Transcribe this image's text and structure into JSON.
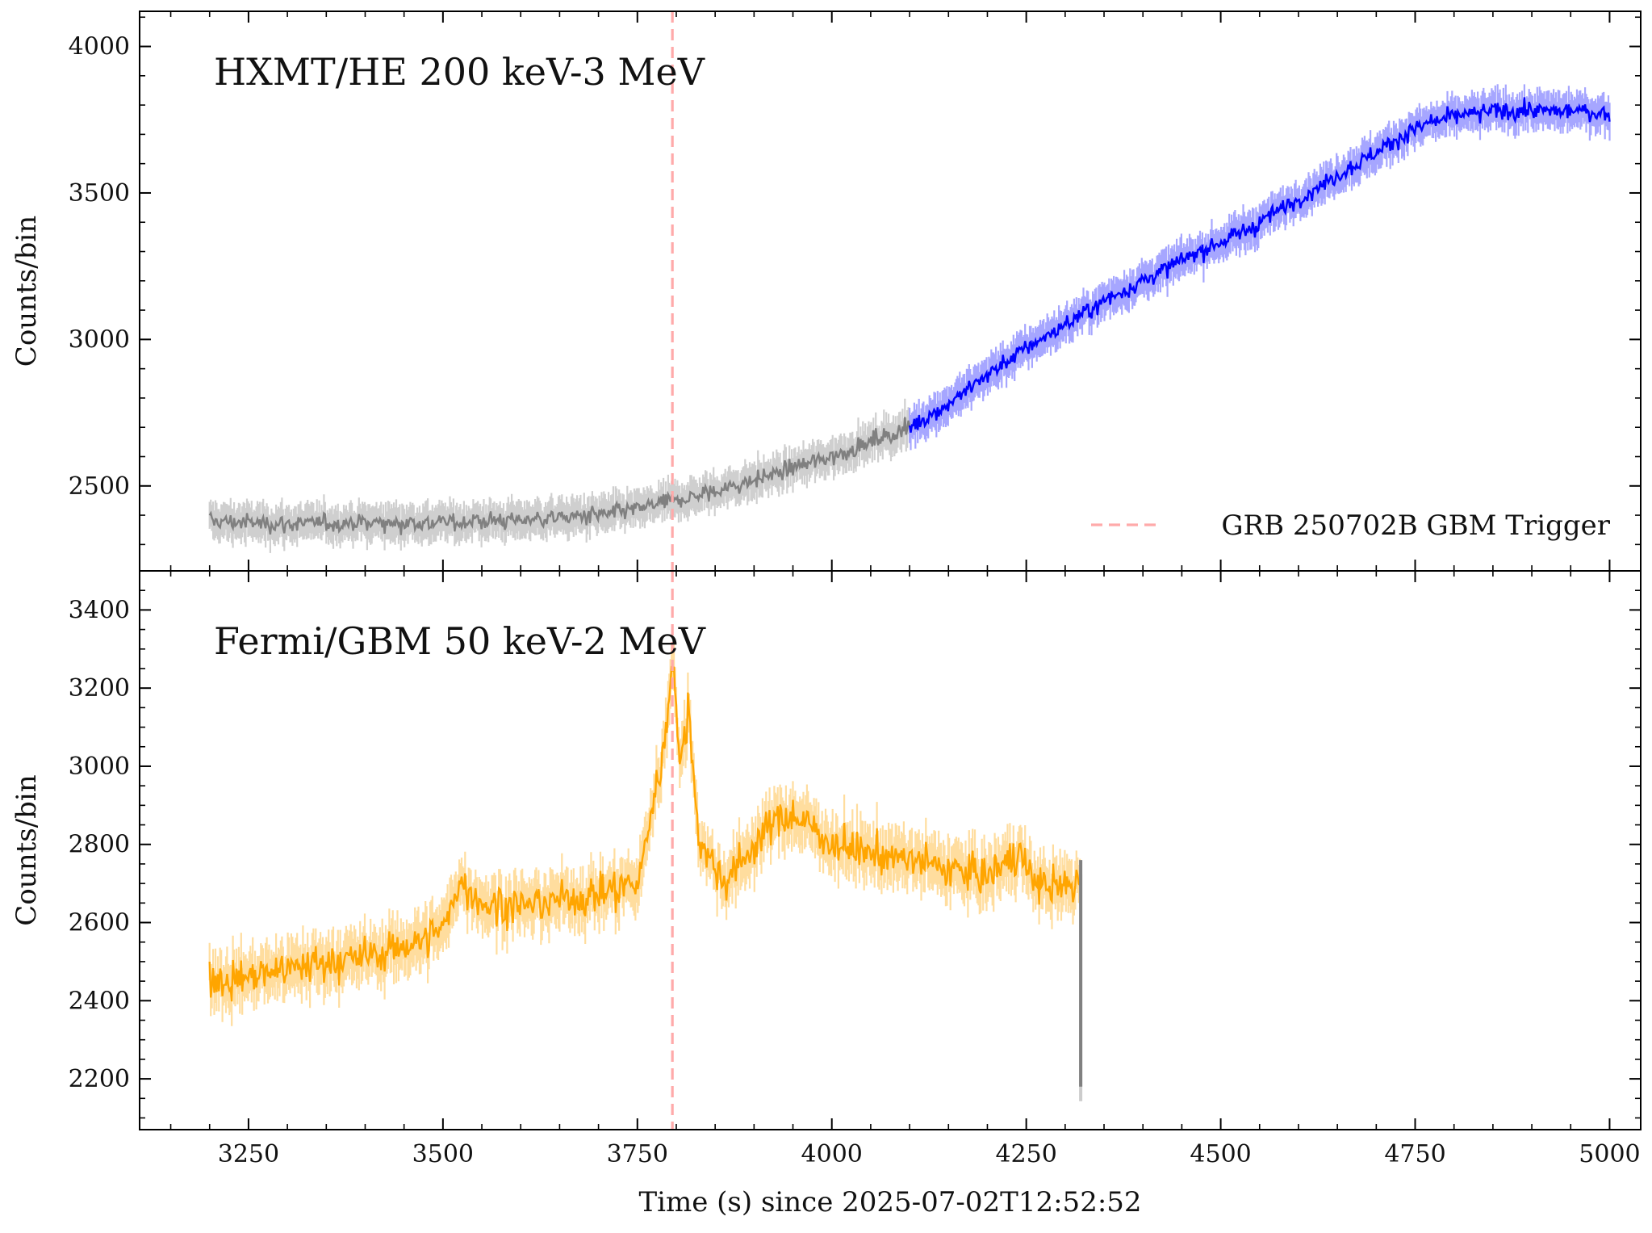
{
  "chart_data": [
    {
      "type": "line",
      "title": "HXMT/HE 200 keV-3 MeV",
      "ylabel": "Counts/bin",
      "xlim": [
        3110,
        5040
      ],
      "ylim": [
        2210,
        4120
      ],
      "xticks": [
        3250,
        3500,
        3750,
        4000,
        4250,
        4500,
        4750,
        5000
      ],
      "yticks": [
        2500,
        3000,
        3500,
        4000
      ],
      "grid": false,
      "legend": {
        "placement": "bottom-right",
        "entries": [
          "GRB 250702B GBM Trigger"
        ]
      },
      "series": [
        {
          "color": "#808080",
          "x": [
            3200,
            3300,
            3400,
            3500,
            3600,
            3700,
            3750,
            3800,
            3850,
            3900,
            3950,
            4000,
            4050,
            4100
          ],
          "values": [
            2380,
            2370,
            2375,
            2375,
            2385,
            2400,
            2420,
            2450,
            2480,
            2520,
            2560,
            2600,
            2650,
            2700
          ]
        },
        {
          "color": "#0000ff",
          "x": [
            4100,
            4150,
            4200,
            4250,
            4300,
            4350,
            4400,
            4450,
            4500,
            4550,
            4600,
            4650,
            4700,
            4750,
            4800,
            4850,
            4900,
            4950,
            5000
          ],
          "values": [
            2700,
            2780,
            2880,
            2970,
            3050,
            3130,
            3200,
            3270,
            3330,
            3400,
            3480,
            3560,
            3640,
            3720,
            3760,
            3780,
            3780,
            3780,
            3770
          ]
        }
      ],
      "annotations": [
        {
          "type": "vline",
          "x": 3795,
          "color": "#ffaaaa",
          "label": "GRB 250702B GBM Trigger"
        }
      ]
    },
    {
      "type": "line",
      "title": "Fermi/GBM 50 keV-2 MeV",
      "xlabel": "Time (s) since 2025-07-02T12:52:52",
      "ylabel": "Counts/bin",
      "xlim": [
        3110,
        5040
      ],
      "ylim": [
        2070,
        3500
      ],
      "xticks": [
        3250,
        3500,
        3750,
        4000,
        4250,
        4500,
        4750,
        5000
      ],
      "yticks": [
        2200,
        2400,
        2600,
        2800,
        3000,
        3200,
        3400
      ],
      "grid": false,
      "series": [
        {
          "color": "#ffa500",
          "x": [
            3200,
            3250,
            3300,
            3350,
            3400,
            3450,
            3500,
            3520,
            3550,
            3600,
            3650,
            3700,
            3750,
            3770,
            3785,
            3795,
            3805,
            3815,
            3830,
            3860,
            3900,
            3940,
            3970,
            4000,
            4050,
            4100,
            4150,
            4200,
            4240,
            4260,
            4300,
            4320
          ],
          "values": [
            2450,
            2460,
            2480,
            2500,
            2510,
            2540,
            2580,
            2700,
            2650,
            2640,
            2660,
            2670,
            2700,
            2900,
            3050,
            3300,
            2980,
            3150,
            2800,
            2700,
            2800,
            2880,
            2850,
            2800,
            2780,
            2760,
            2740,
            2720,
            2780,
            2700,
            2690,
            2700
          ]
        },
        {
          "color": "#808080",
          "x": [
            4320,
            4320
          ],
          "values": [
            2760,
            2180
          ]
        }
      ],
      "annotations": [
        {
          "type": "vline",
          "x": 3795,
          "color": "#ffaaaa"
        }
      ]
    }
  ]
}
